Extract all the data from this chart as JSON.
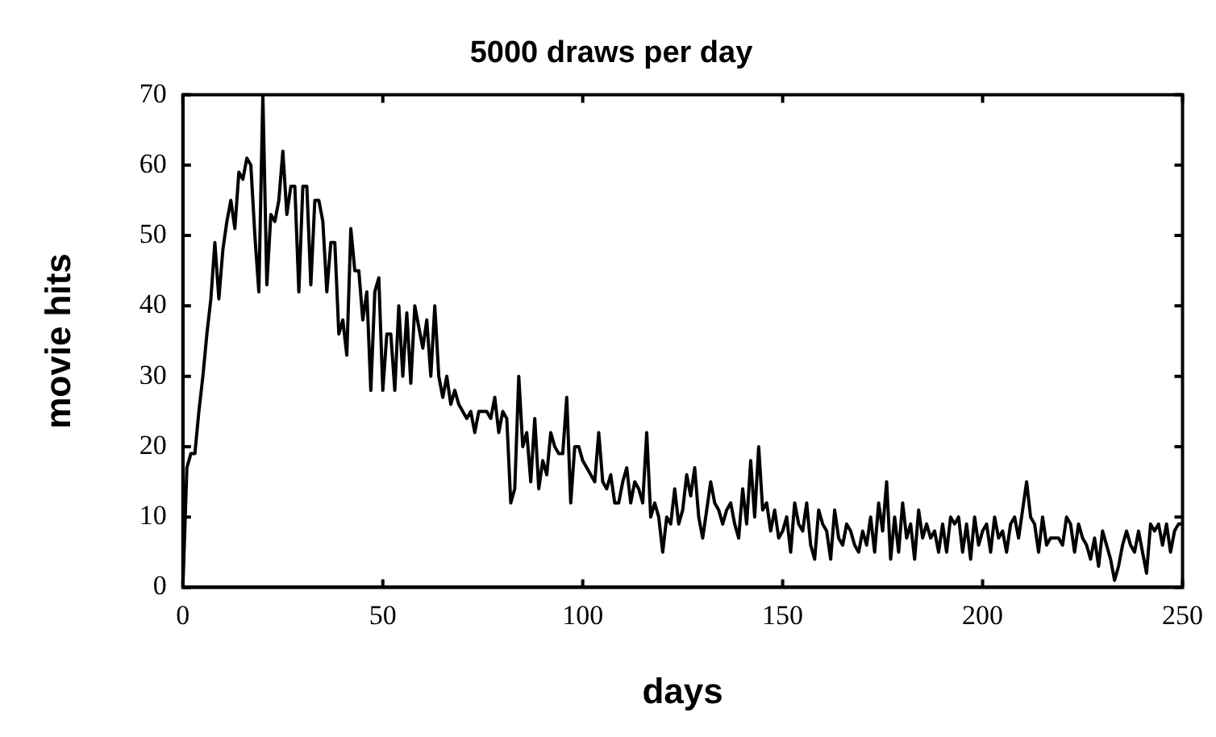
{
  "chart_data": {
    "type": "line",
    "title": "5000 draws per day",
    "xlabel": "days",
    "ylabel": "movie hits",
    "marker": "none",
    "grid": false,
    "legend": false,
    "xlim": [
      0,
      250
    ],
    "xticks": [
      0,
      50,
      100,
      150,
      200,
      250
    ],
    "ylim": [
      0,
      70
    ],
    "yticks": [
      0,
      10,
      20,
      30,
      40,
      50,
      60,
      70
    ],
    "series": [
      {
        "color": "#000000",
        "x": [
          0,
          1,
          2,
          3,
          4,
          5,
          6,
          7,
          8,
          9,
          10,
          11,
          12,
          13,
          14,
          15,
          16,
          17,
          18,
          19,
          20,
          21,
          22,
          23,
          24,
          25,
          26,
          27,
          28,
          29,
          30,
          31,
          32,
          33,
          34,
          35,
          36,
          37,
          38,
          39,
          40,
          41,
          42,
          43,
          44,
          45,
          46,
          47,
          48,
          49,
          50,
          51,
          52,
          53,
          54,
          55,
          56,
          57,
          58,
          59,
          60,
          61,
          62,
          63,
          64,
          65,
          66,
          67,
          68,
          69,
          70,
          71,
          72,
          73,
          74,
          75,
          76,
          77,
          78,
          79,
          80,
          81,
          82,
          83,
          84,
          85,
          86,
          87,
          88,
          89,
          90,
          91,
          92,
          93,
          94,
          95,
          96,
          97,
          98,
          99,
          100,
          101,
          102,
          103,
          104,
          105,
          106,
          107,
          108,
          109,
          110,
          111,
          112,
          113,
          114,
          115,
          116,
          117,
          118,
          119,
          120,
          121,
          122,
          123,
          124,
          125,
          126,
          127,
          128,
          129,
          130,
          131,
          132,
          133,
          134,
          135,
          136,
          137,
          138,
          139,
          140,
          141,
          142,
          143,
          144,
          145,
          146,
          147,
          148,
          149,
          150,
          151,
          152,
          153,
          154,
          155,
          156,
          157,
          158,
          159,
          160,
          161,
          162,
          163,
          164,
          165,
          166,
          167,
          168,
          169,
          170,
          171,
          172,
          173,
          174,
          175,
          176,
          177,
          178,
          179,
          180,
          181,
          182,
          183,
          184,
          185,
          186,
          187,
          188,
          189,
          190,
          191,
          192,
          193,
          194,
          195,
          196,
          197,
          198,
          199,
          200,
          201,
          202,
          203,
          204,
          205,
          206,
          207,
          208,
          209,
          210,
          211,
          212,
          213,
          214,
          215,
          216,
          217,
          218,
          219,
          220,
          221,
          222,
          223,
          224,
          225,
          226,
          227,
          228,
          229,
          230,
          231,
          232,
          233,
          234,
          235,
          236,
          237,
          238,
          239,
          240,
          241,
          242,
          243,
          244,
          245,
          246,
          247,
          248,
          249,
          250
        ],
        "values": [
          0,
          17,
          19,
          19,
          25,
          30,
          36,
          41,
          49,
          41,
          48,
          52,
          55,
          51,
          59,
          58,
          61,
          60,
          50,
          42,
          70,
          43,
          53,
          52,
          55,
          62,
          53,
          57,
          57,
          42,
          57,
          57,
          43,
          55,
          55,
          52,
          42,
          49,
          49,
          36,
          38,
          33,
          51,
          45,
          45,
          38,
          42,
          28,
          42,
          44,
          28,
          36,
          36,
          28,
          40,
          30,
          39,
          29,
          40,
          37,
          34,
          38,
          30,
          40,
          30,
          27,
          30,
          26,
          28,
          26,
          25,
          24,
          25,
          22,
          25,
          25,
          25,
          24,
          27,
          22,
          25,
          24,
          12,
          14,
          30,
          20,
          22,
          15,
          24,
          14,
          18,
          16,
          22,
          20,
          19,
          19,
          27,
          12,
          20,
          20,
          18,
          17,
          16,
          15,
          22,
          15,
          14,
          16,
          12,
          12,
          15,
          17,
          12,
          15,
          14,
          12,
          22,
          10,
          12,
          10,
          5,
          10,
          9,
          14,
          9,
          11,
          16,
          13,
          17,
          10,
          7,
          11,
          15,
          12,
          11,
          9,
          11,
          12,
          9,
          7,
          14,
          9,
          18,
          10,
          20,
          11,
          12,
          8,
          11,
          7,
          8,
          10,
          5,
          12,
          9,
          8,
          12,
          6,
          4,
          11,
          9,
          8,
          4,
          11,
          7,
          6,
          9,
          8,
          6,
          5,
          8,
          6,
          10,
          5,
          12,
          8,
          15,
          4,
          10,
          5,
          12,
          7,
          9,
          4,
          11,
          7,
          9,
          7,
          8,
          5,
          9,
          5,
          10,
          9,
          10,
          5,
          9,
          4,
          10,
          6,
          8,
          9,
          5,
          10,
          7,
          8,
          5,
          9,
          10,
          7,
          11,
          15,
          10,
          9,
          5,
          10,
          6,
          7,
          7,
          7,
          6,
          10,
          9,
          5,
          9,
          7,
          6,
          4,
          7,
          3,
          8,
          6,
          4,
          1,
          3,
          6,
          8,
          6,
          5,
          8,
          5,
          2,
          9,
          8,
          9,
          6,
          9,
          5,
          8,
          9,
          9
        ]
      }
    ]
  }
}
